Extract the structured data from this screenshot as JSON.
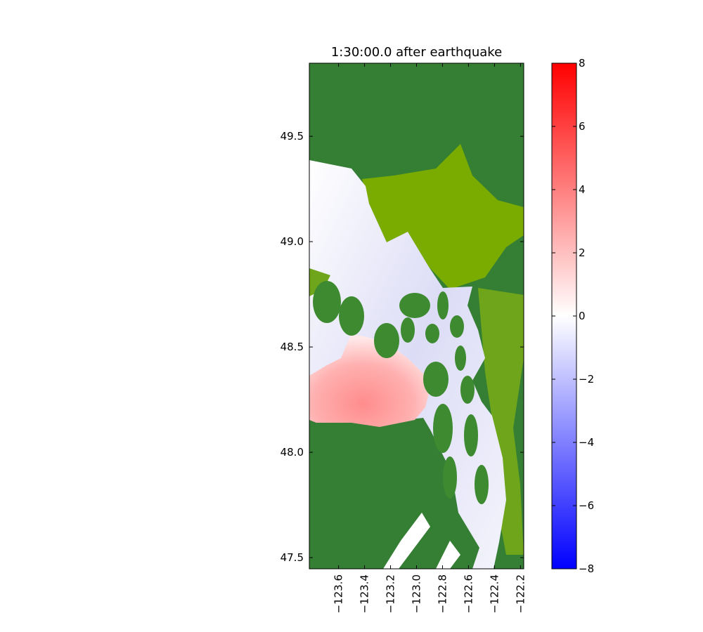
{
  "chart_data": {
    "type": "heatmap",
    "title": "1:30:00.0 after earthquake",
    "xlabel": "",
    "ylabel": "",
    "xlim": [
      -123.825,
      -122.175
    ],
    "ylim": [
      47.447,
      49.847
    ],
    "xticks": [
      -123.6,
      -123.4,
      -123.2,
      -123.0,
      -122.8,
      -122.6,
      -122.4,
      -122.2
    ],
    "xtick_labels": [
      "−123.6",
      "−123.4",
      "−123.2",
      "−123.0",
      "−122.8",
      "−122.6",
      "−122.4",
      "−122.2"
    ],
    "yticks": [
      47.5,
      48.0,
      48.5,
      49.0,
      49.5
    ],
    "ytick_labels": [
      "47.5",
      "48.0",
      "48.5",
      "49.0",
      "49.5"
    ],
    "colorbar": {
      "range": [
        -8,
        8
      ],
      "ticks": [
        8,
        6,
        4,
        2,
        0,
        -2,
        -4,
        -6,
        -8
      ],
      "tick_labels": [
        "8",
        "6",
        "4",
        "2",
        "0",
        "−2",
        "−4",
        "−6",
        "−8"
      ],
      "colormap": [
        "#0000ff",
        "#ffffff",
        "#ff0000"
      ]
    },
    "colors": {
      "land_dark": "#357f35",
      "land_light": "#7aac00",
      "water_neg": "#dcdcf6",
      "water_pos": "#ff9a9a"
    }
  }
}
